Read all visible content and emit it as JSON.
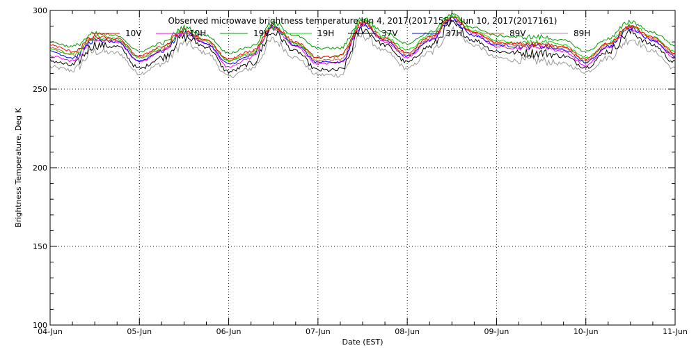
{
  "chart_data": {
    "type": "line",
    "title": "Observed microwave brightness temperature Jun 4, 2017(2017155) - Jun 10, 2017(2017161)",
    "xlabel": "Date (EST)",
    "ylabel": "Brightness Temperature, Deg K",
    "xlim": [
      0,
      7
    ],
    "ylim": [
      100,
      300
    ],
    "x_tick_labels": [
      "04-Jun",
      "05-Jun",
      "06-Jun",
      "07-Jun",
      "08-Jun",
      "09-Jun",
      "10-Jun",
      "11-Jun"
    ],
    "y_tick_labels": [
      "100",
      "150",
      "200",
      "250",
      "300"
    ],
    "grid": true,
    "legend_position": "top",
    "x": [
      0.0,
      0.25,
      0.5,
      0.75,
      1.0,
      1.25,
      1.5,
      1.75,
      2.0,
      2.25,
      2.5,
      2.75,
      3.0,
      3.25,
      3.5,
      3.75,
      4.0,
      4.25,
      4.5,
      4.75,
      5.0,
      5.25,
      5.5,
      5.75,
      6.0,
      6.25,
      6.5,
      6.75,
      7.0
    ],
    "series": [
      {
        "name": "10V",
        "color": "#ff0000",
        "values": [
          278,
          274,
          283,
          282,
          271,
          277,
          287,
          281,
          269,
          274,
          290,
          280,
          270,
          271,
          292,
          282,
          273,
          283,
          295,
          286,
          280,
          279,
          279,
          277,
          269,
          279,
          290,
          283,
          273
        ]
      },
      {
        "name": "10H",
        "color": "#ff00ff",
        "values": [
          271,
          268,
          282,
          280,
          267,
          274,
          286,
          279,
          264,
          270,
          289,
          277,
          266,
          267,
          292,
          280,
          270,
          281,
          295,
          285,
          277,
          276,
          277,
          274,
          265,
          277,
          289,
          281,
          270
        ]
      },
      {
        "name": "19V",
        "color": "#009900",
        "values": [
          280,
          277,
          285,
          284,
          274,
          279,
          289,
          284,
          273,
          277,
          292,
          284,
          276,
          276,
          295,
          286,
          279,
          286,
          297,
          289,
          284,
          283,
          283,
          281,
          274,
          282,
          293,
          286,
          278
        ]
      },
      {
        "name": "19H",
        "color": "#00dd00",
        "values": [
          275,
          272,
          283,
          282,
          270,
          276,
          287,
          281,
          268,
          273,
          290,
          279,
          270,
          271,
          294,
          283,
          275,
          284,
          296,
          287,
          281,
          279,
          280,
          278,
          270,
          279,
          291,
          283,
          274
        ]
      },
      {
        "name": "37V",
        "color": "#000000",
        "values": [
          268,
          265,
          278,
          277,
          263,
          270,
          283,
          277,
          261,
          266,
          286,
          274,
          262,
          262,
          288,
          278,
          267,
          277,
          291,
          281,
          274,
          273,
          273,
          271,
          264,
          274,
          286,
          278,
          267
        ]
      },
      {
        "name": "37H",
        "color": "#0000ff",
        "values": [
          274,
          270,
          281,
          280,
          268,
          274,
          286,
          279,
          266,
          271,
          289,
          278,
          267,
          267,
          291,
          281,
          271,
          281,
          294,
          284,
          278,
          277,
          277,
          275,
          267,
          277,
          289,
          281,
          271
        ]
      },
      {
        "name": "89V",
        "color": "#cc6633",
        "values": [
          276,
          272,
          282,
          281,
          270,
          275,
          286,
          280,
          268,
          272,
          289,
          279,
          268,
          269,
          293,
          281,
          272,
          282,
          296,
          286,
          279,
          278,
          278,
          276,
          268,
          278,
          290,
          282,
          272
        ]
      },
      {
        "name": "89H",
        "color": "#999999",
        "values": [
          264,
          262,
          274,
          273,
          260,
          266,
          279,
          273,
          258,
          263,
          281,
          270,
          259,
          259,
          284,
          274,
          263,
          273,
          287,
          278,
          270,
          268,
          268,
          266,
          261,
          270,
          282,
          274,
          263
        ]
      }
    ]
  }
}
